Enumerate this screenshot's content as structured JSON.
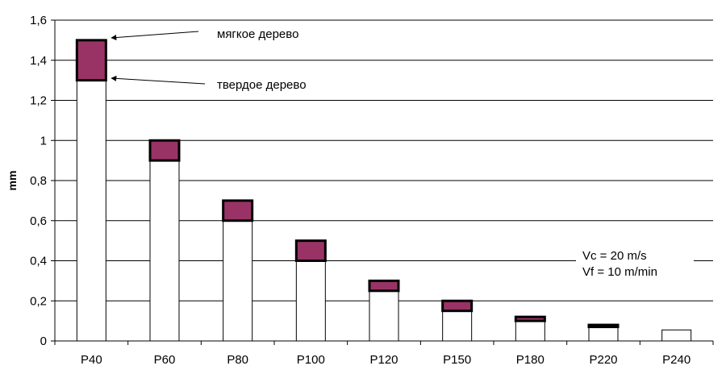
{
  "chart_data": {
    "type": "bar",
    "ylabel": "mm",
    "xlabel": "",
    "ylim": [
      0,
      1.6
    ],
    "yticks": [
      0,
      0.2,
      0.4,
      0.6,
      0.8,
      1,
      1.2,
      1.4,
      1.6
    ],
    "ytick_labels": [
      "0",
      "0,2",
      "0,4",
      "0,6",
      "0,8",
      "1",
      "1,2",
      "1,4",
      "1,6"
    ],
    "grid": true,
    "categories": [
      "P40",
      "P60",
      "P80",
      "P100",
      "P120",
      "P150",
      "P180",
      "P220",
      "P240"
    ],
    "series": [
      {
        "name": "твердое дерево",
        "values": [
          1.3,
          0.9,
          0.6,
          0.4,
          0.25,
          0.15,
          0.1,
          0.07,
          0.055
        ]
      },
      {
        "name": "мягкое дерево",
        "values": [
          1.5,
          1.0,
          0.7,
          0.5,
          0.3,
          0.2,
          0.12,
          0.08,
          0.055
        ]
      }
    ],
    "colors": {
      "hard": "#ffffff",
      "soft": "#993366",
      "outline": "#000000",
      "grid": "#000000"
    },
    "annotations": [
      {
        "text": "мягкое дерево",
        "points_to": "P40 мягкое дерево"
      },
      {
        "text": "твердое дерево",
        "points_to": "P40 твердое дерево"
      }
    ],
    "note_lines": [
      "Vc = 20 m/s",
      "Vf = 10 m/min"
    ]
  }
}
